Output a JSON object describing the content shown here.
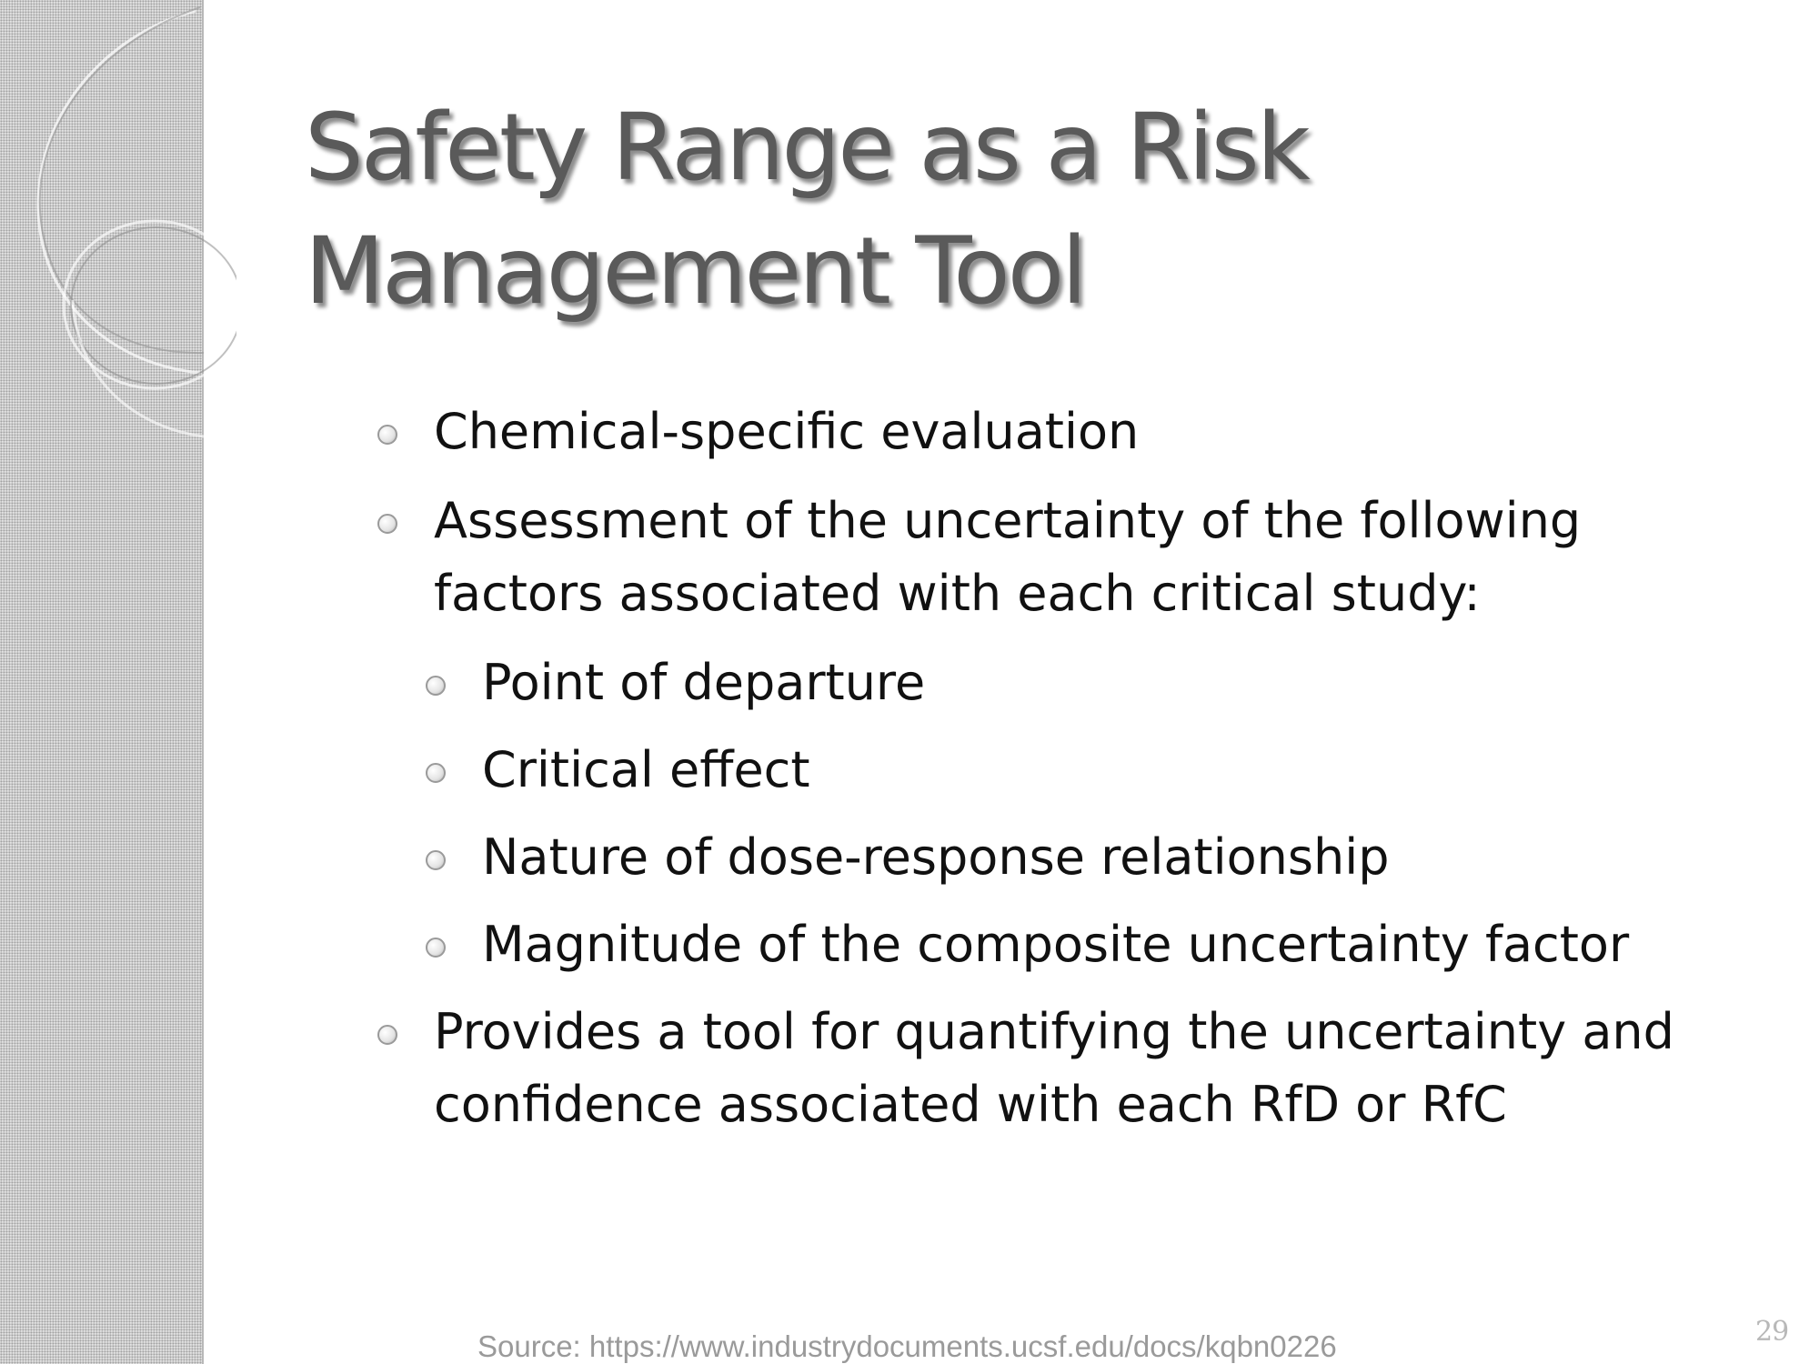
{
  "slide": {
    "title": "Safety Range as a Risk Management Tool",
    "bullets": [
      {
        "text": "Chemical-specific evaluation"
      },
      {
        "text": "Assessment of the uncertainty of the following factors associated with each critical study:"
      },
      {
        "text": "Point of departure"
      },
      {
        "text": "Critical effect"
      },
      {
        "text": "Nature of dose-response relationship"
      },
      {
        "text": "Magnitude of the composite uncertainty factor"
      },
      {
        "text": "Provides a tool for quantifying the uncertainty and confidence associated with each RfD or RfC"
      }
    ],
    "page_number": "29"
  },
  "footer": {
    "source": "Source: https://www.industrydocuments.ucsf.edu/docs/kqbn0226"
  },
  "colors": {
    "title": "#5a5a5a",
    "body_text": "#111111",
    "side_band": "#d4d4d4",
    "source_text": "#9a9a9a"
  },
  "icons": {
    "bullet": "hollow-circle-bullet"
  }
}
